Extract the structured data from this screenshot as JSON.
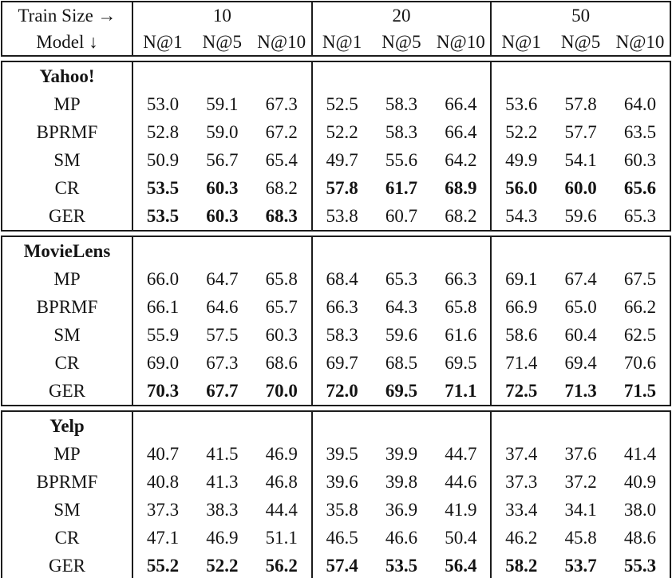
{
  "page": {
    "background": "#ffffff",
    "text_color": "#141414",
    "border_color": "#1c1c1c"
  },
  "table": {
    "header": {
      "corner_top": "Train Size →",
      "corner_bottom": "Model ↓",
      "train_sizes": [
        "10",
        "20",
        "50"
      ],
      "metrics": [
        "N@1",
        "N@5",
        "N@10"
      ]
    },
    "sections": [
      {
        "dataset": "Yahoo!",
        "rows": [
          {
            "model": "MP",
            "values": [
              "53.0",
              "59.1",
              "67.3",
              "52.5",
              "58.3",
              "66.4",
              "53.6",
              "57.8",
              "64.0"
            ],
            "bold": [
              0,
              0,
              0,
              0,
              0,
              0,
              0,
              0,
              0
            ]
          },
          {
            "model": "BPRMF",
            "values": [
              "52.8",
              "59.0",
              "67.2",
              "52.2",
              "58.3",
              "66.4",
              "52.2",
              "57.7",
              "63.5"
            ],
            "bold": [
              0,
              0,
              0,
              0,
              0,
              0,
              0,
              0,
              0
            ]
          },
          {
            "model": "SM",
            "values": [
              "50.9",
              "56.7",
              "65.4",
              "49.7",
              "55.6",
              "64.2",
              "49.9",
              "54.1",
              "60.3"
            ],
            "bold": [
              0,
              0,
              0,
              0,
              0,
              0,
              0,
              0,
              0
            ]
          },
          {
            "model": "CR",
            "values": [
              "53.5",
              "60.3",
              "68.2",
              "57.8",
              "61.7",
              "68.9",
              "56.0",
              "60.0",
              "65.6"
            ],
            "bold": [
              1,
              1,
              0,
              1,
              1,
              1,
              1,
              1,
              1
            ]
          },
          {
            "model": "GER",
            "values": [
              "53.5",
              "60.3",
              "68.3",
              "53.8",
              "60.7",
              "68.2",
              "54.3",
              "59.6",
              "65.3"
            ],
            "bold": [
              1,
              1,
              1,
              0,
              0,
              0,
              0,
              0,
              0
            ]
          }
        ]
      },
      {
        "dataset": "MovieLens",
        "rows": [
          {
            "model": "MP",
            "values": [
              "66.0",
              "64.7",
              "65.8",
              "68.4",
              "65.3",
              "66.3",
              "69.1",
              "67.4",
              "67.5"
            ],
            "bold": [
              0,
              0,
              0,
              0,
              0,
              0,
              0,
              0,
              0
            ]
          },
          {
            "model": "BPRMF",
            "values": [
              "66.1",
              "64.6",
              "65.7",
              "66.3",
              "64.3",
              "65.8",
              "66.9",
              "65.0",
              "66.2"
            ],
            "bold": [
              0,
              0,
              0,
              0,
              0,
              0,
              0,
              0,
              0
            ]
          },
          {
            "model": "SM",
            "values": [
              "55.9",
              "57.5",
              "60.3",
              "58.3",
              "59.6",
              "61.6",
              "58.6",
              "60.4",
              "62.5"
            ],
            "bold": [
              0,
              0,
              0,
              0,
              0,
              0,
              0,
              0,
              0
            ]
          },
          {
            "model": "CR",
            "values": [
              "69.0",
              "67.3",
              "68.6",
              "69.7",
              "68.5",
              "69.5",
              "71.4",
              "69.4",
              "70.6"
            ],
            "bold": [
              0,
              0,
              0,
              0,
              0,
              0,
              0,
              0,
              0
            ]
          },
          {
            "model": "GER",
            "values": [
              "70.3",
              "67.7",
              "70.0",
              "72.0",
              "69.5",
              "71.1",
              "72.5",
              "71.3",
              "71.5"
            ],
            "bold": [
              1,
              1,
              1,
              1,
              1,
              1,
              1,
              1,
              1
            ]
          }
        ]
      },
      {
        "dataset": "Yelp",
        "rows": [
          {
            "model": "MP",
            "values": [
              "40.7",
              "41.5",
              "46.9",
              "39.5",
              "39.9",
              "44.7",
              "37.4",
              "37.6",
              "41.4"
            ],
            "bold": [
              0,
              0,
              0,
              0,
              0,
              0,
              0,
              0,
              0
            ]
          },
          {
            "model": "BPRMF",
            "values": [
              "40.8",
              "41.3",
              "46.8",
              "39.6",
              "39.8",
              "44.6",
              "37.3",
              "37.2",
              "40.9"
            ],
            "bold": [
              0,
              0,
              0,
              0,
              0,
              0,
              0,
              0,
              0
            ]
          },
          {
            "model": "SM",
            "values": [
              "37.3",
              "38.3",
              "44.4",
              "35.8",
              "36.9",
              "41.9",
              "33.4",
              "34.1",
              "38.0"
            ],
            "bold": [
              0,
              0,
              0,
              0,
              0,
              0,
              0,
              0,
              0
            ]
          },
          {
            "model": "CR",
            "values": [
              "47.1",
              "46.9",
              "51.1",
              "46.5",
              "46.6",
              "50.4",
              "46.2",
              "45.8",
              "48.6"
            ],
            "bold": [
              0,
              0,
              0,
              0,
              0,
              0,
              0,
              0,
              0
            ]
          },
          {
            "model": "GER",
            "values": [
              "55.2",
              "52.2",
              "56.2",
              "57.4",
              "53.5",
              "56.4",
              "58.2",
              "53.7",
              "55.3"
            ],
            "bold": [
              1,
              1,
              1,
              1,
              1,
              1,
              1,
              1,
              1
            ]
          }
        ]
      }
    ]
  }
}
